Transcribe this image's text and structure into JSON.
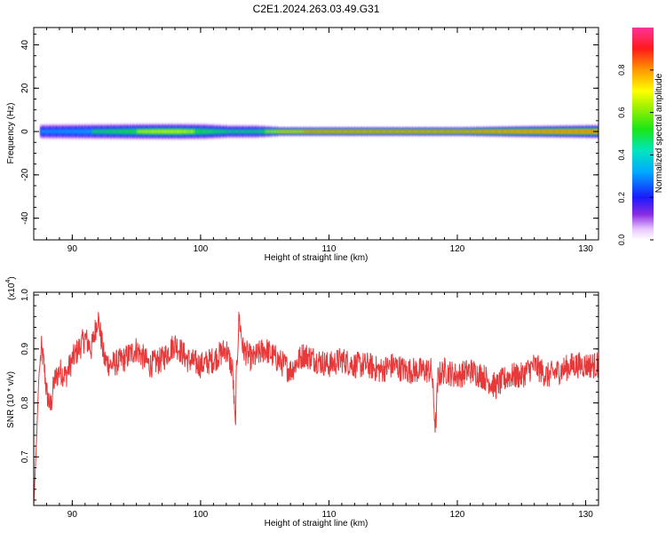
{
  "figure": {
    "title": "C2E1.2024.263.03.49.G31"
  },
  "chart_data": [
    {
      "type": "heatmap",
      "xlabel": "Height of straight line (km)",
      "ylabel": "Frequency (Hz)",
      "xlim": [
        87,
        131
      ],
      "ylim": [
        -50,
        48
      ],
      "xticks": [
        90,
        100,
        110,
        120,
        130
      ],
      "yticks": [
        -40,
        -20,
        0,
        20,
        40
      ],
      "grid": false,
      "colorbar": {
        "label": "Normalized spectral amplitude",
        "range": [
          0,
          1
        ],
        "ticks": [
          0.0,
          0.2,
          0.4,
          0.6,
          0.8
        ],
        "tick_labels": [
          "0.0",
          "0.2",
          "0.4",
          "0.6",
          "0.8"
        ],
        "colormap": "rainbow (white → purple → blue → cyan → green → yellow → orange → red → pink)"
      },
      "band": {
        "center_frequency_hz": 0,
        "x": [
          87.5,
          90,
          93,
          96,
          98,
          100,
          102,
          104,
          106,
          110,
          115,
          120,
          125,
          131
        ],
        "amplitude": [
          0.45,
          0.5,
          0.6,
          0.75,
          0.78,
          0.65,
          0.55,
          0.55,
          0.9,
          0.95,
          0.95,
          0.95,
          0.95,
          0.95
        ],
        "half_width_hz": [
          3,
          3,
          3,
          3,
          3,
          3,
          2.5,
          2.5,
          1.5,
          1.5,
          1.5,
          1.5,
          2,
          2.5
        ]
      }
    },
    {
      "type": "line",
      "xlabel": "Height of straight line (km)",
      "ylabel": "SNR (10 * v/v)",
      "yscale_label": "(x10",
      "yscale_exponent": "4",
      "xlim": [
        87,
        131
      ],
      "ylim": [
        0.61,
        1.005
      ],
      "xticks": [
        90,
        100,
        110,
        120,
        130
      ],
      "yticks": [
        0.7,
        0.8,
        0.9,
        1.0
      ],
      "grid": false,
      "series": [
        {
          "color": "#e8393a",
          "x": [
            87.0,
            87.2,
            87.4,
            87.6,
            87.8,
            88.0,
            88.3,
            88.6,
            89.0,
            89.5,
            90.0,
            90.5,
            91.0,
            91.5,
            92.0,
            92.5,
            93.0,
            94.0,
            95.0,
            96.0,
            97.0,
            98.0,
            99.0,
            100.0,
            101.0,
            102.0,
            102.5,
            102.7,
            102.8,
            103.0,
            103.3,
            104.0,
            105.0,
            106.0,
            107.0,
            108.0,
            109.0,
            110.0,
            111.0,
            112.0,
            113.0,
            114.0,
            115.0,
            116.0,
            117.0,
            118.0,
            118.3,
            118.5,
            119.0,
            120.0,
            121.0,
            122.0,
            123.0,
            124.0,
            125.0,
            126.0,
            127.0,
            128.0,
            129.0,
            130.0,
            131.0
          ],
          "values": [
            0.61,
            0.72,
            0.85,
            0.9,
            0.87,
            0.82,
            0.79,
            0.84,
            0.86,
            0.85,
            0.88,
            0.9,
            0.92,
            0.9,
            0.96,
            0.88,
            0.87,
            0.88,
            0.9,
            0.87,
            0.88,
            0.91,
            0.88,
            0.87,
            0.88,
            0.9,
            0.86,
            0.75,
            0.86,
            0.96,
            0.9,
            0.88,
            0.9,
            0.88,
            0.86,
            0.89,
            0.88,
            0.87,
            0.88,
            0.87,
            0.87,
            0.86,
            0.87,
            0.86,
            0.86,
            0.86,
            0.75,
            0.85,
            0.86,
            0.85,
            0.86,
            0.85,
            0.83,
            0.85,
            0.85,
            0.87,
            0.85,
            0.86,
            0.87,
            0.87,
            0.87
          ]
        }
      ]
    }
  ]
}
